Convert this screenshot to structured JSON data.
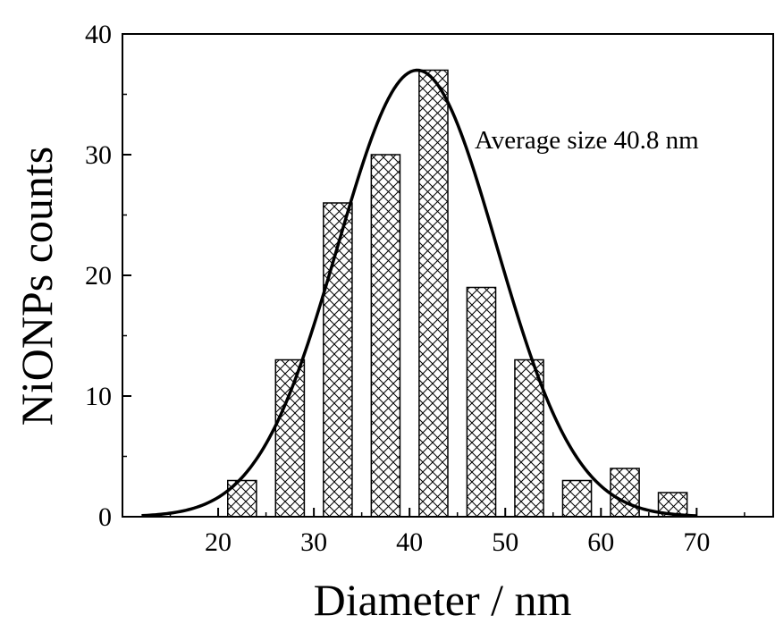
{
  "chart_data": {
    "type": "bar",
    "xlabel": "Diameter / nm",
    "ylabel": "NiONPs counts",
    "xlim": [
      10,
      78
    ],
    "ylim": [
      0,
      40
    ],
    "xticks": [
      20,
      30,
      40,
      50,
      60,
      70
    ],
    "yticks": [
      0,
      10,
      20,
      30,
      40
    ],
    "bins": [
      {
        "center": 22.5,
        "width": 5,
        "count": 3
      },
      {
        "center": 27.5,
        "width": 5,
        "count": 13
      },
      {
        "center": 32.5,
        "width": 5,
        "count": 26
      },
      {
        "center": 37.5,
        "width": 5,
        "count": 30
      },
      {
        "center": 42.5,
        "width": 5,
        "count": 37
      },
      {
        "center": 47.5,
        "width": 5,
        "count": 19
      },
      {
        "center": 52.5,
        "width": 5,
        "count": 13
      },
      {
        "center": 57.5,
        "width": 5,
        "count": 3
      },
      {
        "center": 62.5,
        "width": 5,
        "count": 4
      },
      {
        "center": 67.5,
        "width": 5,
        "count": 2
      }
    ],
    "fit": {
      "type": "gaussian",
      "mean": 40.8,
      "sigma": 8.3,
      "amplitude": 37,
      "x_range": [
        12,
        70
      ]
    },
    "annotation": "Average size 40.8 nm",
    "bar_fill": "crosshatch",
    "grid": false,
    "legend": "none"
  }
}
